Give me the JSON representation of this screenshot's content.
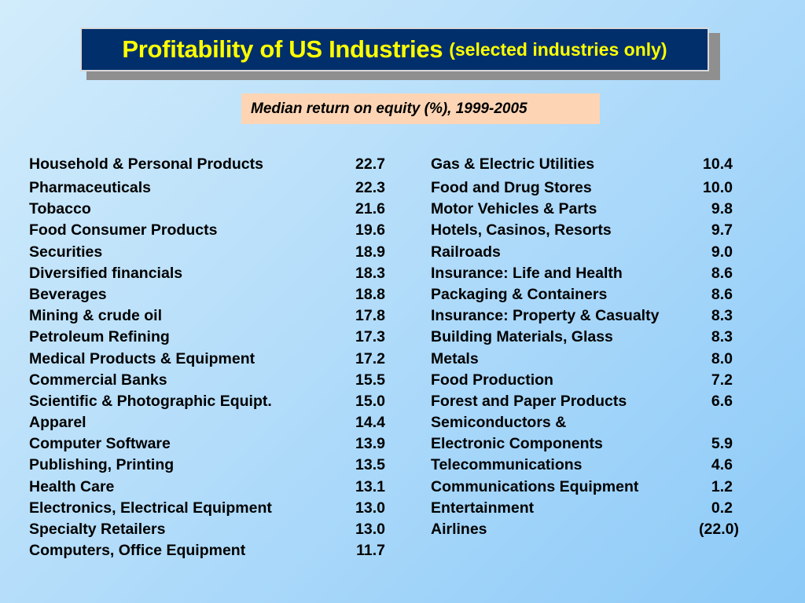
{
  "title": {
    "main": "Profitability of US Industries",
    "sub": "(selected industries only)"
  },
  "subtitle": "Median return on equity (%), 1999-2005",
  "colors": {
    "title_bg": "#002f6c",
    "title_text": "#ffff00",
    "subtitle_bg": "#fdd5b4"
  },
  "left_column": [
    {
      "name": "Household & Personal Products",
      "value": "22.7"
    },
    {
      "name": "Pharmaceuticals",
      "value": "22.3"
    },
    {
      "name": "Tobacco",
      "value": "21.6"
    },
    {
      "name": "Food Consumer Products",
      "value": "19.6"
    },
    {
      "name": "Securities",
      "value": "18.9"
    },
    {
      "name": "Diversified financials",
      "value": "18.3"
    },
    {
      "name": "Beverages",
      "value": "18.8"
    },
    {
      "name": "Mining & crude oil",
      "value": "17.8"
    },
    {
      "name": "Petroleum Refining",
      "value": "17.3"
    },
    {
      "name": "Medical Products & Equipment",
      "value": "17.2"
    },
    {
      "name": "Commercial Banks",
      "value": "15.5"
    },
    {
      "name": "Scientific & Photographic Equipt.",
      "value": "15.0"
    },
    {
      "name": "Apparel",
      "value": "14.4"
    },
    {
      "name": "Computer Software",
      "value": "13.9"
    },
    {
      "name": "Publishing, Printing",
      "value": "13.5"
    },
    {
      "name": "Health Care",
      "value": "13.1"
    },
    {
      "name": "Electronics, Electrical Equipment",
      "value": "13.0"
    },
    {
      "name": "Specialty Retailers",
      "value": "13.0"
    },
    {
      "name": "Computers, Office Equipment",
      "value": "11.7"
    }
  ],
  "right_column": [
    {
      "name": "Gas & Electric Utilities",
      "value": "10.4"
    },
    {
      "name": "Food and Drug Stores",
      "value": "10.0"
    },
    {
      "name": "Motor Vehicles & Parts",
      "value": "9.8"
    },
    {
      "name": "Hotels, Casinos, Resorts",
      "value": "9.7"
    },
    {
      "name": "Railroads",
      "value": "9.0"
    },
    {
      "name": "Insurance: Life and Health",
      "value": "8.6"
    },
    {
      "name": "Packaging & Containers",
      "value": "8.6"
    },
    {
      "name": "Insurance: Property & Casualty",
      "value": "8.3"
    },
    {
      "name": "Building Materials, Glass",
      "value": "8.3"
    },
    {
      "name": "Metals",
      "value": "8.0"
    },
    {
      "name": "Food Production",
      "value": "7.2"
    },
    {
      "name": "Forest and Paper Products",
      "value": "6.6"
    },
    {
      "name": "Semiconductors &",
      "value": ""
    },
    {
      "name": "Electronic Components",
      "value": "5.9"
    },
    {
      "name": "Telecommunications",
      "value": "4.6"
    },
    {
      "name": "Communications Equipment",
      "value": "1.2"
    },
    {
      "name": "Entertainment",
      "value": "0.2"
    },
    {
      "name": "Airlines",
      "value": "(22.0)"
    }
  ]
}
